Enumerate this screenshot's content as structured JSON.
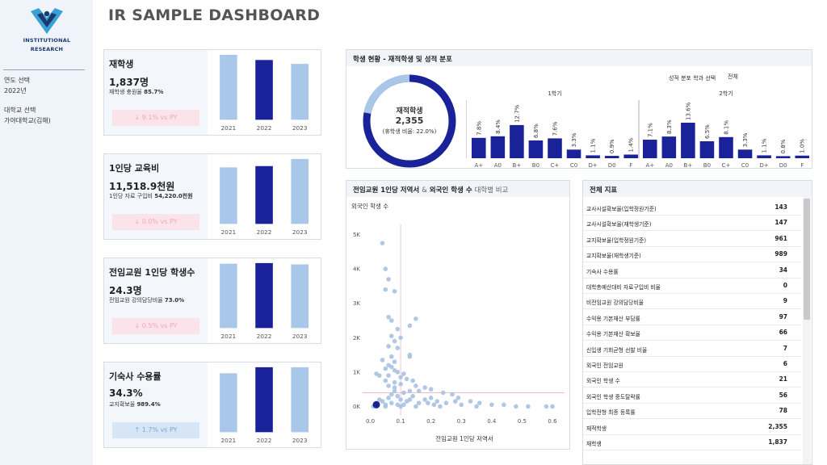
{
  "sidebar": {
    "logo_line1": "INSTITUTIONAL",
    "logo_line2": "RESEARCH",
    "year_label": "연도 선택",
    "year_value": "2022년",
    "school_label": "대학교 선택",
    "school_value": "가야대학교(김해)"
  },
  "title": "IR SAMPLE DASHBOARD",
  "colors": {
    "highlight": "#1a2299",
    "bar": "#a9c7e8",
    "point": "#a9c2e2"
  },
  "kpis": [
    {
      "title": "재학생",
      "value": "1,837명",
      "sub_label": "재학생 충원율",
      "sub_value": "85.7%",
      "badge": "↓ 9.1% vs PY",
      "trend": "down",
      "years": [
        "2021",
        "2022",
        "2023"
      ],
      "values": [
        100,
        92,
        86
      ],
      "highlight": 1
    },
    {
      "title": "1인당 교육비",
      "value": "11,518.9천원",
      "sub_label": "1인당 자료 구입비",
      "sub_value": "54,220.0천원",
      "badge": "↓ 0.0% vs PY",
      "trend": "down",
      "years": [
        "2021",
        "2022",
        "2023"
      ],
      "values": [
        87,
        89,
        100
      ],
      "highlight": 1
    },
    {
      "title": "전임교원 1인당 학생수",
      "value": "24.3명",
      "sub_label": "전임교원 강의담당비율",
      "sub_value": "73.0%",
      "badge": "↓ 0.5% vs PY",
      "trend": "down",
      "years": [
        "2021",
        "2022",
        "2023"
      ],
      "values": [
        99,
        100,
        98
      ],
      "highlight": 1
    },
    {
      "title": "기숙사 수용률",
      "value": "34.3%",
      "sub_label": "교지확보율",
      "sub_value": "989.4%",
      "badge": "↑ 1.7% vs PY",
      "trend": "up",
      "years": [
        "2021",
        "2022",
        "2023"
      ],
      "values": [
        88,
        97,
        97
      ],
      "highlight": 1
    }
  ],
  "student_panel": {
    "title": "학생 현황 - 재적학생 및 성적 분포",
    "donut_label": "재적학생",
    "donut_value": "2,355",
    "donut_sub": "(휴학생 비율: 22.0%)",
    "donut_ratio": 0.22,
    "filter_label": "성적 분포 학과 선택",
    "filter_value": "전체",
    "semesters": [
      {
        "name": "1학기",
        "grades": [
          "A+",
          "A0",
          "B+",
          "B0",
          "C+",
          "C0",
          "D+",
          "D0",
          "F"
        ],
        "values": [
          7.8,
          8.4,
          12.7,
          6.8,
          7.6,
          3.3,
          1.1,
          0.9,
          1.4
        ]
      },
      {
        "name": "2학기",
        "grades": [
          "A+",
          "A0",
          "B+",
          "B0",
          "C+",
          "C0",
          "D+",
          "D0",
          "F"
        ],
        "values": [
          7.1,
          8.3,
          13.6,
          6.5,
          8.1,
          3.3,
          1.1,
          0.8,
          1.0
        ]
      }
    ]
  },
  "scatter_panel": {
    "title_a": "전임교원 1인당 저역서",
    "title_amp": "&",
    "title_b": "외국인 학생 수",
    "title_c": "대학별 비교"
  },
  "chart_data": {
    "type": "scatter",
    "xlabel": "전임교원 1인당 저역서",
    "ylabel": "외국인 학생 수",
    "xlim": [
      -0.02,
      0.64
    ],
    "ylim": [
      -200,
      5200
    ],
    "x_ticks": [
      "0.0",
      "0.1",
      "0.2",
      "0.3",
      "0.4",
      "0.5",
      "0.6"
    ],
    "y_ticks": [
      "0K",
      "1K",
      "2K",
      "3K",
      "4K",
      "5K"
    ],
    "ref_x": 0.1,
    "ref_y": 400,
    "highlight_point": [
      0.02,
      50
    ],
    "points": [
      [
        0.04,
        4750
      ],
      [
        0.05,
        4000
      ],
      [
        0.06,
        3700
      ],
      [
        0.05,
        3400
      ],
      [
        0.08,
        3350
      ],
      [
        0.06,
        2600
      ],
      [
        0.07,
        2500
      ],
      [
        0.15,
        2550
      ],
      [
        0.13,
        2350
      ],
      [
        0.09,
        2250
      ],
      [
        0.07,
        2050
      ],
      [
        0.1,
        2000
      ],
      [
        0.08,
        1900
      ],
      [
        0.06,
        1750
      ],
      [
        0.09,
        1700
      ],
      [
        0.13,
        1500
      ],
      [
        0.13,
        1450
      ],
      [
        0.07,
        1450
      ],
      [
        0.04,
        1350
      ],
      [
        0.08,
        1300
      ],
      [
        0.06,
        1200
      ],
      [
        0.07,
        1150
      ],
      [
        0.05,
        1100
      ],
      [
        0.08,
        1050
      ],
      [
        0.09,
        1000
      ],
      [
        0.11,
        950
      ],
      [
        0.02,
        950
      ],
      [
        0.03,
        900
      ],
      [
        0.06,
        900
      ],
      [
        0.1,
        850
      ],
      [
        0.12,
        800
      ],
      [
        0.14,
        750
      ],
      [
        0.05,
        750
      ],
      [
        0.08,
        700
      ],
      [
        0.1,
        650
      ],
      [
        0.15,
        600
      ],
      [
        0.18,
        550
      ],
      [
        0.2,
        500
      ],
      [
        0.16,
        450
      ],
      [
        0.13,
        450
      ],
      [
        0.08,
        450
      ],
      [
        0.11,
        400
      ],
      [
        0.24,
        400
      ],
      [
        0.27,
        350
      ],
      [
        0.07,
        350
      ],
      [
        0.09,
        300
      ],
      [
        0.14,
        300
      ],
      [
        0.29,
        250
      ],
      [
        0.2,
        250
      ],
      [
        0.06,
        250
      ],
      [
        0.18,
        200
      ],
      [
        0.1,
        200
      ],
      [
        0.12,
        150
      ],
      [
        0.22,
        150
      ],
      [
        0.33,
        150
      ],
      [
        0.04,
        150
      ],
      [
        0.07,
        100
      ],
      [
        0.25,
        100
      ],
      [
        0.16,
        100
      ],
      [
        0.36,
        100
      ],
      [
        0.02,
        100
      ],
      [
        0.11,
        50
      ],
      [
        0.21,
        50
      ],
      [
        0.09,
        50
      ],
      [
        0.3,
        50
      ],
      [
        0.05,
        50
      ],
      [
        0.03,
        200
      ],
      [
        0.06,
        600
      ],
      [
        0.08,
        550
      ],
      [
        0.13,
        200
      ],
      [
        0.19,
        100
      ],
      [
        0.28,
        150
      ],
      [
        0.4,
        50
      ],
      [
        0.44,
        50
      ],
      [
        0.48,
        0
      ],
      [
        0.52,
        0
      ],
      [
        0.58,
        0
      ],
      [
        0.6,
        0
      ],
      [
        0.35,
        0
      ],
      [
        0.23,
        0
      ],
      [
        0.01,
        0
      ],
      [
        0.05,
        0
      ],
      [
        0.1,
        0
      ],
      [
        0.15,
        0
      ]
    ]
  },
  "table": {
    "title": "전체 지표",
    "rows": [
      {
        "label": "교사시설확보율(입학정원기준)",
        "value": "143"
      },
      {
        "label": "교사시설확보율(재학생기준)",
        "value": "147"
      },
      {
        "label": "교지확보율(입학정원기준)",
        "value": "961"
      },
      {
        "label": "교지확보율(재학생기준)",
        "value": "989"
      },
      {
        "label": "기숙사 수용률",
        "value": "34"
      },
      {
        "label": "대학총예산대비 자료구입비 비율",
        "value": "0"
      },
      {
        "label": "비전임교원 강의담당비율",
        "value": "9"
      },
      {
        "label": "수익용 기본재산 부담률",
        "value": "97"
      },
      {
        "label": "수익용 기본재산 확보율",
        "value": "66"
      },
      {
        "label": "신입생 기회균형 선발 비율",
        "value": "7"
      },
      {
        "label": "외국인 전임교원",
        "value": "6"
      },
      {
        "label": "외국인 학생 수",
        "value": "21"
      },
      {
        "label": "외국인 학생 중도탈락률",
        "value": "56"
      },
      {
        "label": "입학전형 최종 등록률",
        "value": "78"
      },
      {
        "label": "재적학생",
        "value": "2,355"
      },
      {
        "label": "재학생",
        "value": "1,837"
      }
    ]
  }
}
